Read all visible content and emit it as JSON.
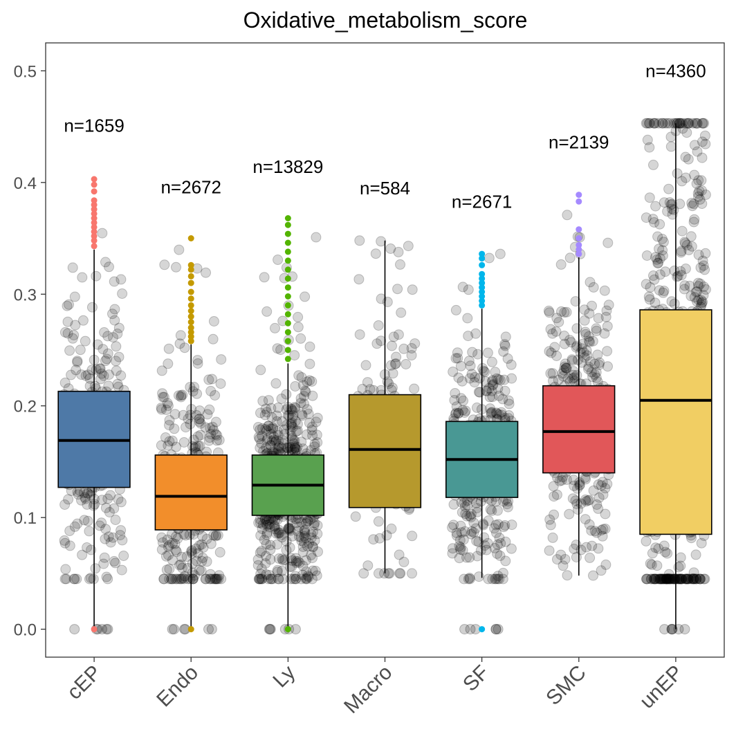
{
  "chart_data": {
    "type": "boxplot",
    "title": "Oxidative_metabolism_score",
    "xlabel": "",
    "ylabel": "",
    "ylim": [
      -0.025,
      0.525
    ],
    "y_ticks": [
      0.0,
      0.1,
      0.2,
      0.3,
      0.4,
      0.5
    ],
    "y_tick_labels": [
      "0.0",
      "0.1",
      "0.2",
      "0.3",
      "0.4",
      "0.5"
    ],
    "grid": false,
    "legend": "none",
    "jitter_point_color": "#000000",
    "categories": [
      "cEP",
      "Endo",
      "Ly",
      "Macro",
      "SF",
      "SMC",
      "unEP"
    ],
    "boxes": [
      {
        "name": "cEP",
        "n_label": "n=1659",
        "n_y": 0.451,
        "color": "#4E79A7",
        "outlier_color": "#F8766D",
        "q1": 0.127,
        "median": 0.169,
        "q3": 0.213,
        "whisker_low": 0.0,
        "whisker_high": 0.34,
        "max": 0.404,
        "min": 0.0,
        "density": 1.0,
        "outliers": [
          0.343,
          0.348,
          0.352,
          0.356,
          0.36,
          0.364,
          0.368,
          0.372,
          0.376,
          0.38,
          0.384,
          0.392,
          0.398,
          0.403
        ]
      },
      {
        "name": "Endo",
        "n_label": "n=2672",
        "n_y": 0.396,
        "color": "#F28E2B",
        "outlier_color": "#C49A00",
        "q1": 0.089,
        "median": 0.119,
        "q3": 0.156,
        "whisker_low": 0.0,
        "whisker_high": 0.255,
        "max": 0.35,
        "min": 0.0,
        "density": 1.3,
        "outliers": [
          0.258,
          0.262,
          0.266,
          0.27,
          0.275,
          0.28,
          0.285,
          0.29,
          0.296,
          0.302,
          0.31,
          0.316,
          0.322,
          0.326,
          0.35
        ]
      },
      {
        "name": "Ly",
        "n_label": "n=13829",
        "n_y": 0.414,
        "color": "#59A14F",
        "outlier_color": "#53B400",
        "q1": 0.102,
        "median": 0.129,
        "q3": 0.156,
        "whisker_low": 0.0,
        "whisker_high": 0.238,
        "max": 0.368,
        "min": 0.0,
        "density": 2.4,
        "outliers": [
          0.242,
          0.25,
          0.258,
          0.266,
          0.274,
          0.282,
          0.29,
          0.298,
          0.306,
          0.314,
          0.322,
          0.33,
          0.338,
          0.346,
          0.354,
          0.362,
          0.368
        ]
      },
      {
        "name": "Macro",
        "n_label": "n=584",
        "n_y": 0.395,
        "color": "#B6992D",
        "outlier_color": "#B6992D",
        "q1": 0.109,
        "median": 0.161,
        "q3": 0.21,
        "whisker_low": 0.05,
        "whisker_high": 0.348,
        "max": 0.348,
        "min": 0.05,
        "density": 0.45,
        "outliers": []
      },
      {
        "name": "SF",
        "n_label": "n=2671",
        "n_y": 0.383,
        "color": "#499894",
        "outlier_color": "#00B6EB",
        "q1": 0.118,
        "median": 0.152,
        "q3": 0.186,
        "whisker_low": 0.046,
        "whisker_high": 0.287,
        "max": 0.336,
        "min": 0.0,
        "density": 1.3,
        "outliers": [
          0.29,
          0.294,
          0.298,
          0.302,
          0.306,
          0.31,
          0.314,
          0.318,
          0.326,
          0.332,
          0.336
        ]
      },
      {
        "name": "SMC",
        "n_label": "n=2139",
        "n_y": 0.436,
        "color": "#E15759",
        "outlier_color": "#A58AFF",
        "q1": 0.14,
        "median": 0.177,
        "q3": 0.218,
        "whisker_low": 0.048,
        "whisker_high": 0.333,
        "max": 0.389,
        "min": 0.048,
        "density": 1.15,
        "outliers": [
          0.336,
          0.34,
          0.344,
          0.35,
          0.358,
          0.383,
          0.389
        ]
      },
      {
        "name": "unEP",
        "n_label": "n=4360",
        "n_y": 0.5,
        "color": "#F1CE63",
        "outlier_color": "#F1CE63",
        "q1": 0.085,
        "median": 0.205,
        "q3": 0.286,
        "whisker_low": 0.0,
        "whisker_high": 0.453,
        "max": 0.453,
        "min": 0.0,
        "density": 1.9,
        "outliers": []
      }
    ]
  }
}
